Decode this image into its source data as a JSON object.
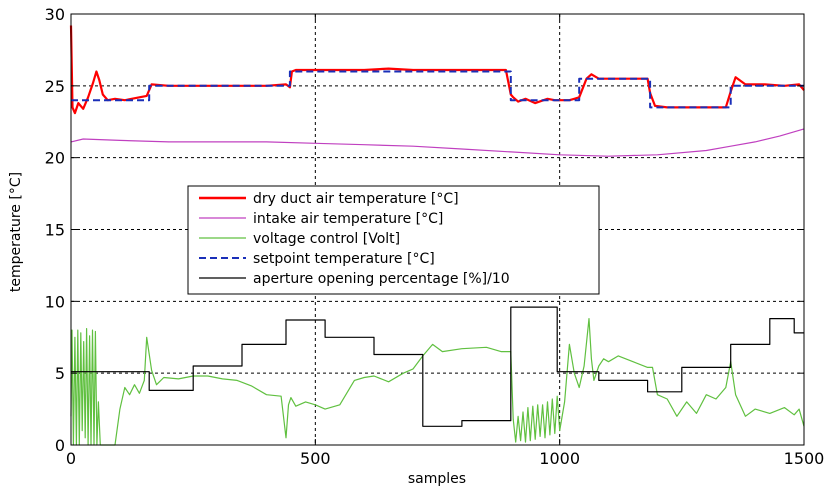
{
  "chart_data": {
    "type": "line",
    "title": "",
    "xlabel": "samples",
    "ylabel": "temperature [°C]",
    "xlim": [
      0,
      1500
    ],
    "ylim": [
      0,
      30
    ],
    "xticks": [
      0,
      500,
      1000,
      1500
    ],
    "yticks": [
      0,
      5,
      10,
      15,
      20,
      25,
      30
    ],
    "grid": true,
    "legend_position": "center",
    "series": [
      {
        "name": "dry duct air temperature [°C]",
        "color": "#ff0000",
        "style": "solid",
        "x": [
          0,
          3,
          8,
          15,
          25,
          35,
          45,
          52,
          58,
          65,
          75,
          90,
          110,
          140,
          155,
          165,
          200,
          250,
          300,
          350,
          400,
          440,
          448,
          452,
          460,
          500,
          550,
          600,
          650,
          700,
          750,
          800,
          850,
          890,
          900,
          905,
          915,
          930,
          950,
          975,
          990,
          1000,
          1020,
          1030,
          1040,
          1055,
          1065,
          1080,
          1120,
          1160,
          1180,
          1185,
          1195,
          1220,
          1260,
          1300,
          1340,
          1350,
          1360,
          1380,
          1420,
          1460,
          1490,
          1500
        ],
        "y": [
          29.2,
          23.5,
          23.1,
          23.8,
          23.4,
          24.2,
          25.2,
          26.0,
          25.4,
          24.4,
          24.0,
          24.1,
          24.0,
          24.2,
          24.3,
          25.1,
          25.0,
          25.0,
          25.0,
          25.0,
          25.0,
          25.1,
          24.9,
          26.0,
          26.1,
          26.1,
          26.1,
          26.1,
          26.2,
          26.1,
          26.1,
          26.1,
          26.1,
          26.1,
          24.4,
          24.2,
          23.9,
          24.1,
          23.8,
          24.1,
          24.0,
          24.0,
          24.0,
          24.1,
          24.2,
          25.5,
          25.8,
          25.5,
          25.5,
          25.5,
          25.5,
          24.5,
          23.6,
          23.5,
          23.5,
          23.5,
          23.5,
          24.6,
          25.6,
          25.1,
          25.1,
          25.0,
          25.1,
          24.7
        ]
      },
      {
        "name": "intake air temperature [°C]",
        "color": "#c040c0",
        "style": "solid",
        "x": [
          0,
          25,
          100,
          200,
          300,
          400,
          500,
          600,
          700,
          800,
          900,
          1000,
          1100,
          1200,
          1300,
          1350,
          1400,
          1450,
          1500
        ],
        "y": [
          21.1,
          21.3,
          21.2,
          21.1,
          21.1,
          21.1,
          21.0,
          20.9,
          20.8,
          20.6,
          20.4,
          20.2,
          20.1,
          20.2,
          20.5,
          20.8,
          21.1,
          21.5,
          22.0
        ]
      },
      {
        "name": "voltage control [Volt]",
        "color": "#60c040",
        "style": "solid",
        "x": [
          0,
          2,
          5,
          8,
          11,
          14,
          17,
          20,
          23,
          26,
          29,
          32,
          35,
          38,
          41,
          44,
          47,
          50,
          53,
          56,
          60,
          70,
          80,
          90,
          100,
          110,
          120,
          130,
          140,
          150,
          155,
          165,
          175,
          190,
          220,
          250,
          280,
          310,
          340,
          370,
          400,
          430,
          440,
          445,
          450,
          460,
          480,
          500,
          520,
          550,
          580,
          600,
          620,
          650,
          680,
          700,
          720,
          740,
          760,
          800,
          850,
          880,
          900,
          905,
          910,
          915,
          920,
          925,
          930,
          935,
          940,
          945,
          950,
          955,
          960,
          965,
          970,
          975,
          980,
          985,
          990,
          995,
          1000,
          1010,
          1020,
          1030,
          1040,
          1050,
          1060,
          1065,
          1070,
          1080,
          1090,
          1100,
          1120,
          1150,
          1180,
          1190,
          1200,
          1220,
          1240,
          1260,
          1280,
          1300,
          1320,
          1340,
          1350,
          1360,
          1380,
          1400,
          1430,
          1460,
          1480,
          1490,
          1500
        ],
        "y": [
          2,
          8,
          0,
          7.5,
          0,
          8,
          0,
          7.8,
          1,
          7.2,
          0.5,
          8.1,
          0,
          7.6,
          0,
          8,
          0,
          7.9,
          0,
          3,
          0,
          0,
          0,
          0,
          2.5,
          4,
          3.5,
          4.2,
          3.6,
          4.5,
          7.5,
          5.2,
          4.2,
          4.7,
          4.6,
          4.8,
          4.8,
          4.6,
          4.5,
          4.1,
          3.5,
          3.4,
          0.5,
          2.8,
          3.3,
          2.7,
          3.0,
          2.8,
          2.5,
          2.8,
          4.5,
          4.7,
          4.8,
          4.4,
          5.0,
          5.3,
          6.2,
          7.0,
          6.5,
          6.7,
          6.8,
          6.5,
          6.5,
          1.8,
          0.2,
          2.0,
          0.3,
          2.3,
          0.2,
          2.6,
          0.3,
          2.7,
          0.4,
          2.8,
          0.6,
          2.8,
          0.5,
          3.0,
          0.7,
          3.2,
          0.8,
          3.4,
          1.0,
          3.0,
          7.0,
          5.0,
          4.0,
          5.5,
          8.8,
          6.0,
          4.5,
          5.5,
          6.0,
          5.8,
          6.2,
          5.8,
          5.4,
          5.4,
          3.5,
          3.2,
          2.0,
          3.0,
          2.2,
          3.5,
          3.2,
          4.0,
          5.8,
          3.5,
          2.0,
          2.5,
          2.2,
          2.6,
          2.1,
          2.5,
          1.3
        ]
      },
      {
        "name": "setpoint temperature [°C]",
        "color": "#1a2fb8",
        "style": "dashed",
        "x": [
          0,
          15,
          15,
          160,
          160,
          448,
          448,
          900,
          900,
          1040,
          1040,
          1185,
          1185,
          1350,
          1350,
          1500
        ],
        "y": [
          24,
          24,
          24,
          24,
          25,
          25,
          26,
          26,
          24,
          24,
          25.5,
          25.5,
          23.5,
          23.5,
          25,
          25
        ]
      },
      {
        "name": "aperture opening percentage [%]/10",
        "color": "#000000",
        "style": "solid",
        "x": [
          0,
          160,
          160,
          250,
          250,
          350,
          350,
          440,
          440,
          520,
          520,
          620,
          620,
          720,
          720,
          800,
          800,
          900,
          900,
          995,
          995,
          1080,
          1080,
          1180,
          1180,
          1250,
          1250,
          1350,
          1350,
          1430,
          1430,
          1480,
          1480,
          1500
        ],
        "y": [
          5.1,
          5.1,
          3.8,
          3.8,
          5.5,
          5.5,
          7.0,
          7.0,
          8.7,
          8.7,
          7.5,
          7.5,
          6.3,
          6.3,
          1.3,
          1.3,
          1.7,
          1.7,
          9.6,
          9.6,
          5.1,
          5.1,
          4.5,
          4.5,
          3.7,
          3.7,
          5.4,
          5.4,
          7.0,
          7.0,
          8.8,
          8.8,
          7.8,
          7.8
        ]
      }
    ]
  }
}
